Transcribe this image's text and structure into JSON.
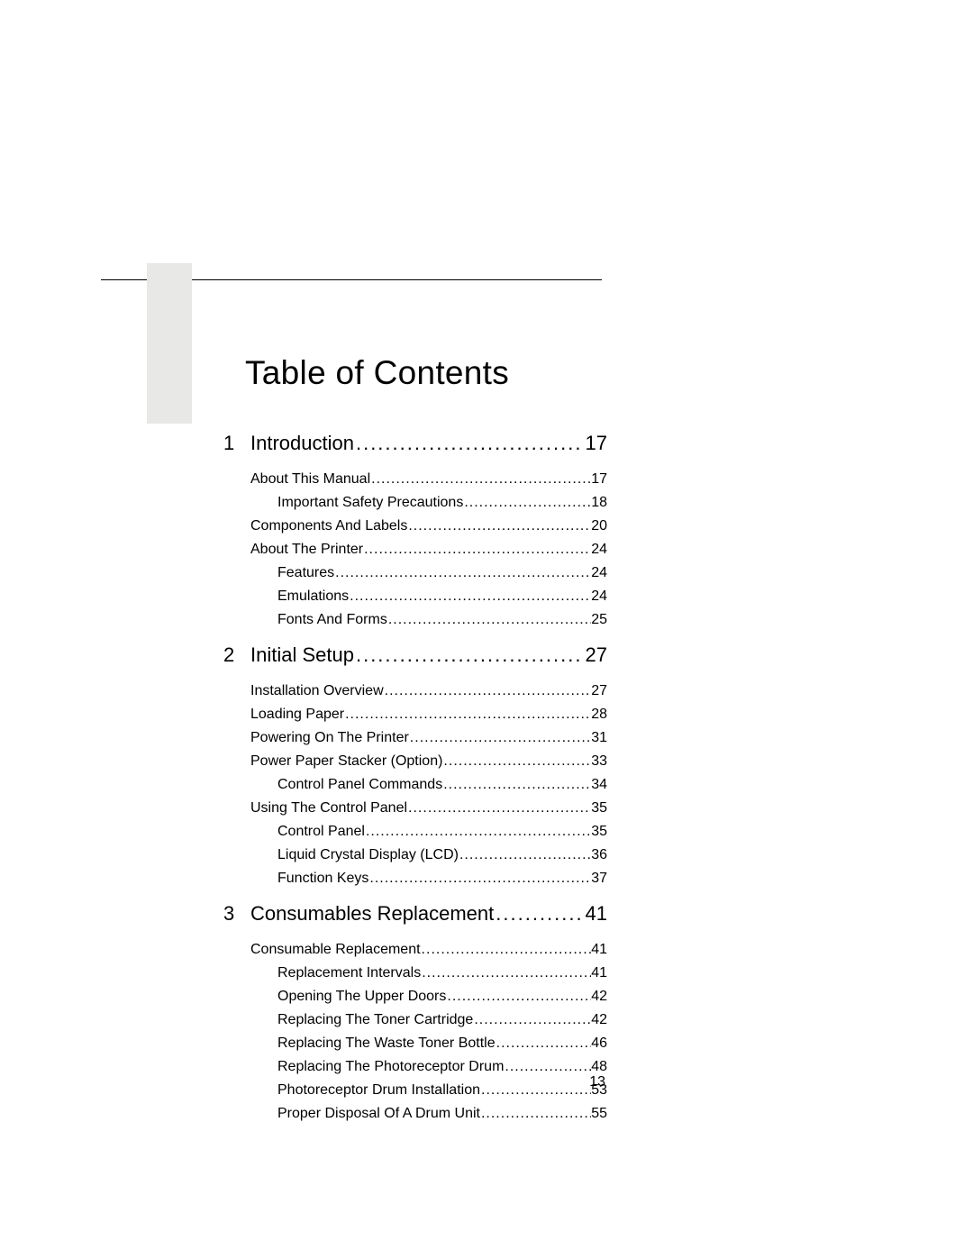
{
  "title": "Table of Contents",
  "page_number": "13",
  "colors": {
    "text": "#000000",
    "background": "#ffffff",
    "gray_block": "#e8e8e6",
    "rule": "#000000"
  },
  "typography": {
    "title_fontsize": 37,
    "section_fontsize": 22,
    "entry_fontsize": 16,
    "font_family": "Arial"
  },
  "sections": [
    {
      "num": "1",
      "label": "Introduction",
      "page": "17",
      "entries": [
        {
          "level": 1,
          "label": "About This Manual",
          "page": "17"
        },
        {
          "level": 2,
          "label": "Important Safety Precautions",
          "page": "18"
        },
        {
          "level": 1,
          "label": "Components And Labels",
          "page": "20"
        },
        {
          "level": 1,
          "label": "About The Printer",
          "page": "24"
        },
        {
          "level": 2,
          "label": "Features",
          "page": "24"
        },
        {
          "level": 2,
          "label": "Emulations",
          "page": "24"
        },
        {
          "level": 2,
          "label": "Fonts And Forms",
          "page": "25"
        }
      ]
    },
    {
      "num": "2",
      "label": "Initial Setup",
      "page": "27",
      "entries": [
        {
          "level": 1,
          "label": "Installation Overview",
          "page": "27"
        },
        {
          "level": 1,
          "label": "Loading Paper",
          "page": "28"
        },
        {
          "level": 1,
          "label": "Powering On The Printer",
          "page": "31"
        },
        {
          "level": 1,
          "label": "Power Paper Stacker (Option)",
          "page": "33"
        },
        {
          "level": 2,
          "label": "Control Panel Commands",
          "page": "34"
        },
        {
          "level": 1,
          "label": "Using The Control Panel",
          "page": "35"
        },
        {
          "level": 2,
          "label": "Control Panel ",
          "page": "35"
        },
        {
          "level": 2,
          "label": "Liquid Crystal Display (LCD)",
          "page": "36"
        },
        {
          "level": 2,
          "label": "Function Keys",
          "page": "37"
        }
      ]
    },
    {
      "num": "3",
      "label": "Consumables Replacement",
      "page": "41",
      "entries": [
        {
          "level": 1,
          "label": "Consumable Replacement",
          "page": "41"
        },
        {
          "level": 2,
          "label": "Replacement Intervals",
          "page": "41"
        },
        {
          "level": 2,
          "label": "Opening The Upper Doors",
          "page": "42"
        },
        {
          "level": 2,
          "label": "Replacing The Toner Cartridge",
          "page": "42"
        },
        {
          "level": 2,
          "label": "Replacing The Waste Toner Bottle",
          "page": "46"
        },
        {
          "level": 2,
          "label": "Replacing The Photoreceptor Drum",
          "page": "48"
        },
        {
          "level": 2,
          "label": "Photoreceptor Drum Installation",
          "page": "53"
        },
        {
          "level": 2,
          "label": "Proper Disposal Of A Drum Unit",
          "page": "55"
        }
      ]
    }
  ]
}
